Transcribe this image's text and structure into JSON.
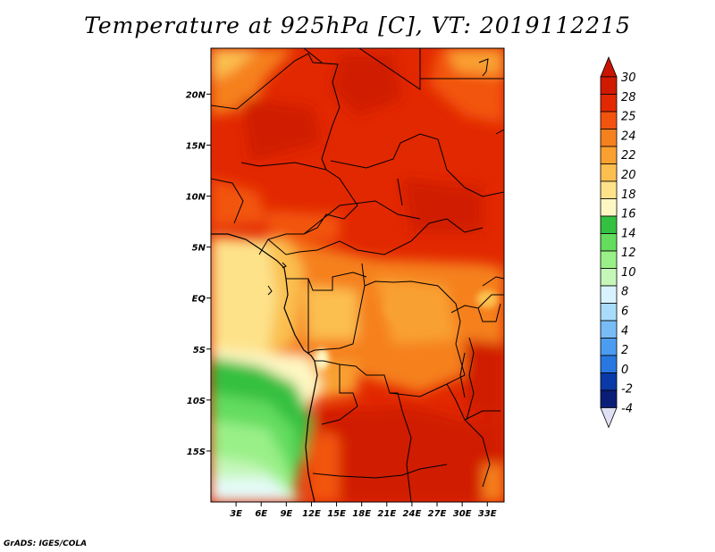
{
  "title": "Temperature at 925hPa [C], VT: 2019112215",
  "footer": "GrADS: IGES/COLA",
  "map": {
    "lon_range": [
      0,
      35
    ],
    "lat_range": [
      -20,
      24.5
    ],
    "lon_ticks": [
      {
        "value": 3,
        "label": "3E"
      },
      {
        "value": 6,
        "label": "6E"
      },
      {
        "value": 9,
        "label": "9E"
      },
      {
        "value": 12,
        "label": "12E"
      },
      {
        "value": 15,
        "label": "15E"
      },
      {
        "value": 18,
        "label": "18E"
      },
      {
        "value": 21,
        "label": "21E"
      },
      {
        "value": 24,
        "label": "24E"
      },
      {
        "value": 27,
        "label": "27E"
      },
      {
        "value": 30,
        "label": "30E"
      },
      {
        "value": 33,
        "label": "33E"
      }
    ],
    "lat_ticks": [
      {
        "value": 20,
        "label": "20N"
      },
      {
        "value": 15,
        "label": "15N"
      },
      {
        "value": 10,
        "label": "10N"
      },
      {
        "value": 5,
        "label": "5N"
      },
      {
        "value": 0,
        "label": "EQ"
      },
      {
        "value": -5,
        "label": "5S"
      },
      {
        "value": -10,
        "label": "10S"
      },
      {
        "value": -15,
        "label": "15S"
      }
    ]
  },
  "colorbar": {
    "levels": [
      {
        "label": "30",
        "color": "#d01a00"
      },
      {
        "label": "28",
        "color": "#e22800"
      },
      {
        "label": "25",
        "color": "#f25410"
      },
      {
        "label": "24",
        "color": "#f5801e"
      },
      {
        "label": "22",
        "color": "#f9a030"
      },
      {
        "label": "20",
        "color": "#fbbf50"
      },
      {
        "label": "18",
        "color": "#fde28a"
      },
      {
        "label": "16",
        "color": "#fff7c3"
      },
      {
        "label": "14",
        "color": "#34c040"
      },
      {
        "label": "12",
        "color": "#64dc5e"
      },
      {
        "label": "10",
        "color": "#9af088"
      },
      {
        "label": "8",
        "color": "#c4f7b8"
      },
      {
        "label": "6",
        "color": "#d8f3ff"
      },
      {
        "label": "4",
        "color": "#a8dcfa"
      },
      {
        "label": "2",
        "color": "#78bcf5"
      },
      {
        "label": "0",
        "color": "#4c9cf0"
      },
      {
        "label": "-2",
        "color": "#2878e0"
      },
      {
        "label": "-4",
        "color": "#1458c8"
      }
    ],
    "top_color": "#c81400",
    "mid_colors": [
      "#0a3aa8",
      "#0a1e78"
    ],
    "bottom_color": "#e0e0f4"
  }
}
